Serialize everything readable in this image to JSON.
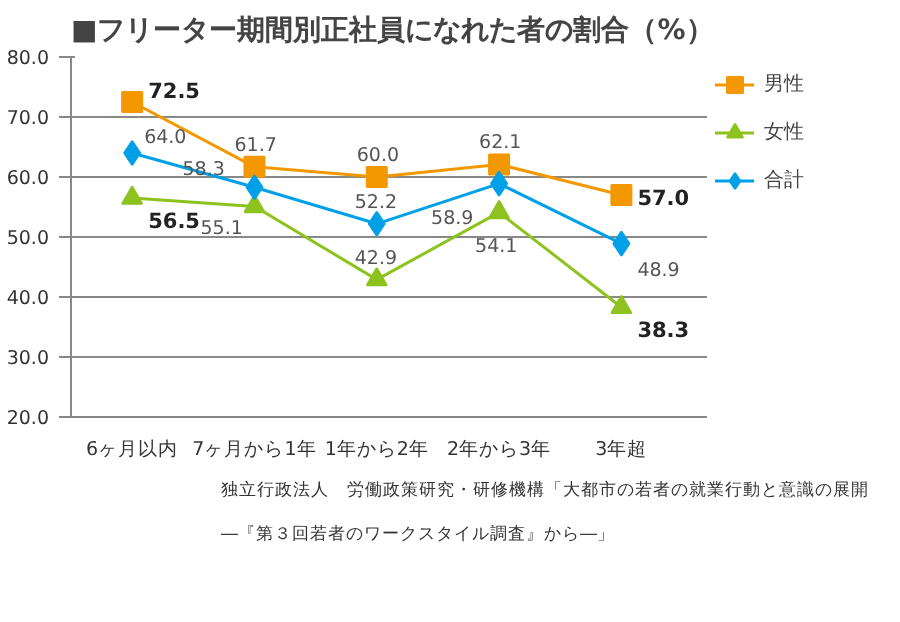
{
  "chart_data": {
    "type": "line",
    "title": "■フリーター期間別正社員になれた者の割合（%）",
    "categories": [
      "6ヶ月以内",
      "7ヶ月から1年",
      "1年から2年",
      "2年から3年",
      "3年超"
    ],
    "series": [
      {
        "name": "男性",
        "color": "#f39800",
        "marker": "square",
        "values": [
          72.5,
          61.7,
          60,
          62.1,
          57
        ],
        "value_labels": [
          "72.5",
          "61.7",
          "60.0",
          "62.1",
          "57.0"
        ]
      },
      {
        "name": "女性",
        "color": "#8dc21f",
        "marker": "triangle",
        "values": [
          56.5,
          55.1,
          42.9,
          54.1,
          38.3
        ],
        "value_labels": [
          "56.5",
          "55.1",
          "42.9",
          "54.1",
          "38.3"
        ]
      },
      {
        "name": "合計",
        "color": "#00a0e9",
        "marker": "diamond",
        "values": [
          64,
          58.3,
          52.2,
          58.9,
          48.9
        ],
        "value_labels": [
          "64.0",
          "58.3",
          "52.2",
          "58.9",
          "48.9"
        ]
      }
    ],
    "ylim": [
      20,
      80
    ],
    "yticks": [
      {
        "value": 20,
        "label": "20.0"
      },
      {
        "value": 30,
        "label": "30.0"
      },
      {
        "value": 40,
        "label": "40.0"
      },
      {
        "value": 50,
        "label": "50.0"
      },
      {
        "value": 60,
        "label": "60.0"
      },
      {
        "value": 70,
        "label": "70.0"
      },
      {
        "value": 80,
        "label": "80.0"
      }
    ],
    "grid": "y",
    "legend": "top right",
    "line_style": "solid",
    "annotations": [
      "独立行政法人　労働政策研究・研修機構「大都市の若者の就業行動と意識の展開",
      "―『第３回若者のワークスタイル調査』から―」"
    ]
  }
}
